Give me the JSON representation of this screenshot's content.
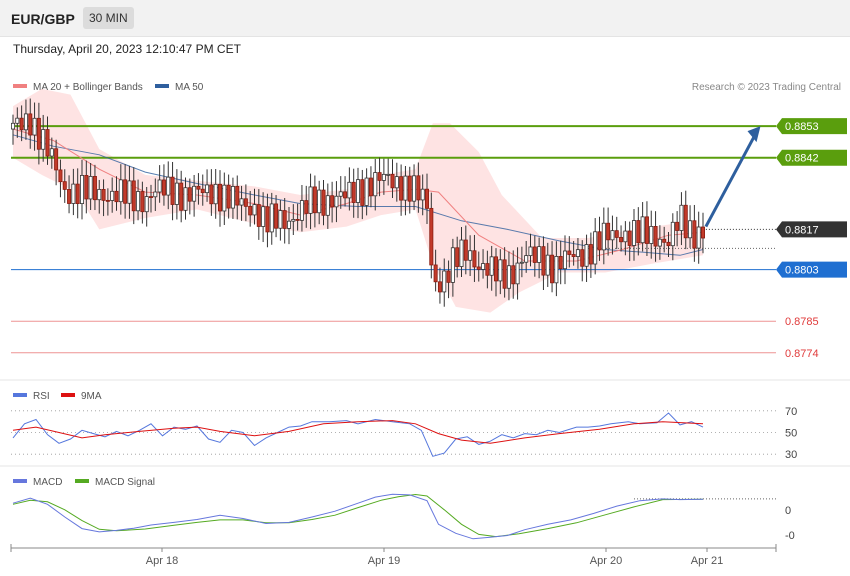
{
  "header": {
    "symbol": "EUR/GBP",
    "timeframe": "30 MIN"
  },
  "date": "Thursday, April 20, 2023 12:10:47 PM CET",
  "legend": {
    "ma20": "MA 20 + Bollinger Bands",
    "ma50": "MA 50",
    "credit": "Research © 2023 Trading Central"
  },
  "colors": {
    "resistance": "#5a9e0d",
    "support": "#1f6fd1",
    "price": "#333333",
    "minor": "#e03b3b",
    "ma20": "#f08080",
    "ma50": "#2f5f9e",
    "band": "#fdd9d9",
    "rsi": "#5577dd",
    "ma9": "#dd1111",
    "macd": "#6677dd",
    "signal": "#55aa22",
    "arrow": "#2e5f9e"
  },
  "chart_data": [
    {
      "type": "candlestick",
      "title": "EUR/GBP",
      "timeframe": "30 MIN",
      "x_ticks": [
        "Apr 18",
        "Apr 19",
        "Apr 20",
        "Apr 21"
      ],
      "ylim": [
        0.8768,
        0.8867
      ],
      "levels": [
        {
          "value": 0.8853,
          "label": "0.8853",
          "kind": "resistance"
        },
        {
          "value": 0.8842,
          "label": "0.8842",
          "kind": "resistance"
        },
        {
          "value": 0.8817,
          "label": "0.8817",
          "kind": "price"
        },
        {
          "value": 0.8803,
          "label": "0.8803",
          "kind": "support"
        },
        {
          "value": 0.8785,
          "label": "0.8785",
          "kind": "minor"
        },
        {
          "value": 0.8774,
          "label": "0.8774",
          "kind": "minor"
        }
      ],
      "price_path": [
        [
          0,
          0.8852
        ],
        [
          6,
          0.8856
        ],
        [
          10,
          0.8848
        ],
        [
          14,
          0.884
        ],
        [
          18,
          0.8831
        ],
        [
          24,
          0.883
        ],
        [
          30,
          0.883
        ],
        [
          36,
          0.8829
        ],
        [
          42,
          0.8828
        ],
        [
          46,
          0.8828
        ],
        [
          50,
          0.883
        ],
        [
          56,
          0.8831
        ],
        [
          60,
          0.8829
        ],
        [
          64,
          0.8829
        ],
        [
          70,
          0.8831
        ],
        [
          74,
          0.8828
        ],
        [
          78,
          0.8826
        ],
        [
          84,
          0.8825
        ],
        [
          88,
          0.8819
        ],
        [
          92,
          0.882
        ],
        [
          96,
          0.8821
        ],
        [
          100,
          0.8823
        ],
        [
          104,
          0.8826
        ],
        [
          110,
          0.8828
        ],
        [
          116,
          0.8828
        ],
        [
          120,
          0.8831
        ],
        [
          124,
          0.8833
        ],
        [
          128,
          0.8834
        ],
        [
          132,
          0.8834
        ],
        [
          136,
          0.8833
        ],
        [
          140,
          0.883
        ],
        [
          144,
          0.8825
        ],
        [
          146,
          0.8799
        ],
        [
          150,
          0.88
        ],
        [
          154,
          0.8806
        ],
        [
          158,
          0.881
        ],
        [
          162,
          0.8805
        ],
        [
          166,
          0.8802
        ],
        [
          170,
          0.8801
        ],
        [
          174,
          0.8803
        ],
        [
          178,
          0.8807
        ],
        [
          184,
          0.8807
        ],
        [
          188,
          0.8804
        ],
        [
          192,
          0.8806
        ],
        [
          196,
          0.8808
        ],
        [
          200,
          0.881
        ],
        [
          206,
          0.8814
        ],
        [
          212,
          0.8816
        ],
        [
          218,
          0.8815
        ],
        [
          224,
          0.8815
        ],
        [
          228,
          0.8813
        ],
        [
          232,
          0.882
        ],
        [
          236,
          0.8816
        ],
        [
          240,
          0.8817
        ]
      ],
      "ma20_path": [
        [
          0,
          0.8852
        ],
        [
          14,
          0.8848
        ],
        [
          30,
          0.8838
        ],
        [
          46,
          0.883
        ],
        [
          64,
          0.8829
        ],
        [
          84,
          0.8826
        ],
        [
          100,
          0.8822
        ],
        [
          116,
          0.8826
        ],
        [
          128,
          0.883
        ],
        [
          140,
          0.8831
        ],
        [
          148,
          0.883
        ],
        [
          162,
          0.8815
        ],
        [
          178,
          0.8806
        ],
        [
          196,
          0.8806
        ],
        [
          212,
          0.881
        ],
        [
          228,
          0.8815
        ],
        [
          240,
          0.8816
        ]
      ],
      "band_upper": [
        [
          0,
          0.886
        ],
        [
          10,
          0.8866
        ],
        [
          20,
          0.8864
        ],
        [
          30,
          0.8845
        ],
        [
          46,
          0.8836
        ],
        [
          64,
          0.8834
        ],
        [
          84,
          0.8832
        ],
        [
          100,
          0.8829
        ],
        [
          116,
          0.8831
        ],
        [
          128,
          0.8836
        ],
        [
          140,
          0.8838
        ],
        [
          146,
          0.8854
        ],
        [
          152,
          0.8854
        ],
        [
          162,
          0.8844
        ],
        [
          170,
          0.8829
        ],
        [
          184,
          0.8814
        ],
        [
          200,
          0.8814
        ],
        [
          216,
          0.8817
        ],
        [
          230,
          0.8819
        ],
        [
          240,
          0.8818
        ]
      ],
      "band_lower": [
        [
          0,
          0.8842
        ],
        [
          10,
          0.8836
        ],
        [
          22,
          0.883
        ],
        [
          30,
          0.8817
        ],
        [
          46,
          0.8821
        ],
        [
          64,
          0.8824
        ],
        [
          84,
          0.8819
        ],
        [
          100,
          0.8816
        ],
        [
          116,
          0.8818
        ],
        [
          128,
          0.8822
        ],
        [
          140,
          0.8824
        ],
        [
          146,
          0.8805
        ],
        [
          154,
          0.879
        ],
        [
          166,
          0.8788
        ],
        [
          176,
          0.8795
        ],
        [
          190,
          0.8802
        ],
        [
          206,
          0.8802
        ],
        [
          222,
          0.8805
        ],
        [
          240,
          0.8808
        ]
      ],
      "ma50_path": [
        [
          0,
          0.885
        ],
        [
          14,
          0.8846
        ],
        [
          30,
          0.8843
        ],
        [
          46,
          0.8837
        ],
        [
          64,
          0.8833
        ],
        [
          84,
          0.8829
        ],
        [
          100,
          0.8826
        ],
        [
          120,
          0.8825
        ],
        [
          140,
          0.8825
        ],
        [
          156,
          0.882
        ],
        [
          172,
          0.8817
        ],
        [
          190,
          0.8813
        ],
        [
          206,
          0.881
        ],
        [
          220,
          0.8809
        ],
        [
          232,
          0.8808
        ],
        [
          240,
          0.881
        ]
      ],
      "forecast": {
        "from": [
          241,
          0.8818
        ],
        "to": [
          260,
          0.8853
        ]
      }
    },
    {
      "type": "line",
      "series": [
        {
          "name": "RSI"
        },
        {
          "name": "9MA"
        }
      ],
      "yticks": [
        70,
        50,
        30
      ],
      "ylim": [
        20,
        80
      ],
      "rsi": [
        [
          0,
          45
        ],
        [
          4,
          58
        ],
        [
          8,
          62
        ],
        [
          12,
          48
        ],
        [
          16,
          40
        ],
        [
          20,
          44
        ],
        [
          24,
          52
        ],
        [
          28,
          49
        ],
        [
          32,
          46
        ],
        [
          36,
          51
        ],
        [
          40,
          47
        ],
        [
          44,
          52
        ],
        [
          48,
          58
        ],
        [
          52,
          47
        ],
        [
          56,
          55
        ],
        [
          60,
          53
        ],
        [
          64,
          56
        ],
        [
          68,
          44
        ],
        [
          72,
          41
        ],
        [
          76,
          52
        ],
        [
          80,
          50
        ],
        [
          84,
          38
        ],
        [
          88,
          45
        ],
        [
          92,
          50
        ],
        [
          96,
          55
        ],
        [
          100,
          56
        ],
        [
          104,
          60
        ],
        [
          110,
          60
        ],
        [
          116,
          61
        ],
        [
          120,
          58
        ],
        [
          126,
          62
        ],
        [
          132,
          60
        ],
        [
          138,
          58
        ],
        [
          142,
          52
        ],
        [
          146,
          28
        ],
        [
          150,
          31
        ],
        [
          154,
          44
        ],
        [
          158,
          46
        ],
        [
          162,
          39
        ],
        [
          166,
          42
        ],
        [
          170,
          48
        ],
        [
          174,
          45
        ],
        [
          178,
          49
        ],
        [
          182,
          48
        ],
        [
          186,
          52
        ],
        [
          190,
          50
        ],
        [
          196,
          55
        ],
        [
          200,
          55
        ],
        [
          204,
          56
        ],
        [
          208,
          58
        ],
        [
          214,
          60
        ],
        [
          218,
          58
        ],
        [
          224,
          59
        ],
        [
          228,
          68
        ],
        [
          232,
          57
        ],
        [
          236,
          60
        ],
        [
          240,
          55
        ]
      ],
      "ma9": [
        [
          0,
          52
        ],
        [
          8,
          55
        ],
        [
          16,
          50
        ],
        [
          24,
          45
        ],
        [
          32,
          48
        ],
        [
          44,
          51
        ],
        [
          56,
          54
        ],
        [
          64,
          55
        ],
        [
          72,
          51
        ],
        [
          84,
          47
        ],
        [
          96,
          51
        ],
        [
          108,
          58
        ],
        [
          120,
          60
        ],
        [
          132,
          61
        ],
        [
          140,
          58
        ],
        [
          148,
          49
        ],
        [
          156,
          43
        ],
        [
          166,
          40
        ],
        [
          178,
          45
        ],
        [
          190,
          49
        ],
        [
          204,
          53
        ],
        [
          216,
          58
        ],
        [
          226,
          60
        ],
        [
          240,
          58
        ]
      ]
    },
    {
      "type": "line",
      "series": [
        {
          "name": "MACD"
        },
        {
          "name": "MACD Signal"
        }
      ],
      "ytick_labels": [
        "0",
        "-0"
      ],
      "ylim": [
        -10,
        6
      ],
      "macd": [
        [
          0,
          1.8
        ],
        [
          6,
          3.2
        ],
        [
          12,
          1.5
        ],
        [
          18,
          -2
        ],
        [
          24,
          -5.2
        ],
        [
          30,
          -6.1
        ],
        [
          36,
          -5.7
        ],
        [
          42,
          -5.1
        ],
        [
          48,
          -4.2
        ],
        [
          56,
          -3.5
        ],
        [
          64,
          -2.7
        ],
        [
          72,
          -1.5
        ],
        [
          80,
          -2.4
        ],
        [
          88,
          -3.8
        ],
        [
          96,
          -3.5
        ],
        [
          104,
          -2
        ],
        [
          112,
          -0.4
        ],
        [
          120,
          1.8
        ],
        [
          126,
          3.5
        ],
        [
          132,
          4.3
        ],
        [
          138,
          4.1
        ],
        [
          144,
          2.5
        ],
        [
          148,
          -4
        ],
        [
          154,
          -6.5
        ],
        [
          160,
          -8
        ],
        [
          166,
          -7.6
        ],
        [
          172,
          -7.1
        ],
        [
          178,
          -5.5
        ],
        [
          186,
          -4
        ],
        [
          194,
          -2.8
        ],
        [
          202,
          -1
        ],
        [
          210,
          1
        ],
        [
          218,
          2.5
        ],
        [
          226,
          3
        ],
        [
          232,
          2.8
        ],
        [
          240,
          2.9
        ]
      ],
      "signal": [
        [
          0,
          1.5
        ],
        [
          6,
          2.6
        ],
        [
          12,
          2.2
        ],
        [
          18,
          0
        ],
        [
          24,
          -3
        ],
        [
          30,
          -5.4
        ],
        [
          36,
          -5.8
        ],
        [
          46,
          -5.3
        ],
        [
          56,
          -4.3
        ],
        [
          64,
          -3.5
        ],
        [
          72,
          -2.8
        ],
        [
          80,
          -2.8
        ],
        [
          88,
          -3.6
        ],
        [
          96,
          -3.6
        ],
        [
          104,
          -2.7
        ],
        [
          112,
          -1.5
        ],
        [
          120,
          0.6
        ],
        [
          128,
          2.6
        ],
        [
          134,
          3.6
        ],
        [
          140,
          4.2
        ],
        [
          144,
          3.8
        ],
        [
          150,
          0
        ],
        [
          156,
          -4
        ],
        [
          162,
          -6.8
        ],
        [
          168,
          -7.4
        ],
        [
          176,
          -6.6
        ],
        [
          186,
          -5.2
        ],
        [
          196,
          -3.6
        ],
        [
          206,
          -1.4
        ],
        [
          216,
          0.8
        ],
        [
          226,
          2.8
        ],
        [
          240,
          2.9
        ]
      ]
    }
  ]
}
